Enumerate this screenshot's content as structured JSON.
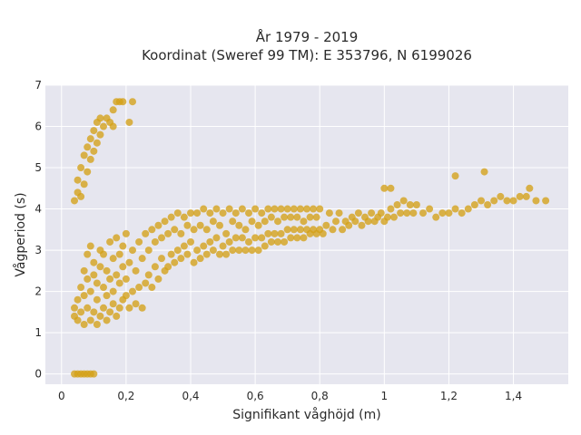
{
  "chart_data": {
    "type": "scatter",
    "title_line1": "År 1979 - 2019",
    "title_line2": "Koordinat (Sweref 99 TM): E 353796, N 6199026",
    "xlabel": "Signifikant våghöjd (m)",
    "ylabel": "Vågperiod (s)",
    "xlim": [
      -0.05,
      1.57
    ],
    "ylim": [
      -0.25,
      7.0
    ],
    "x_ticks": [
      0,
      0.2,
      0.4,
      0.6,
      0.8,
      1.0,
      1.2,
      1.4
    ],
    "x_tick_labels": [
      "0",
      "0,2",
      "0,4",
      "0,6",
      "0,8",
      "1",
      "1,2",
      "1,4"
    ],
    "y_ticks": [
      0,
      1,
      2,
      3,
      4,
      5,
      6,
      7
    ],
    "y_tick_labels": [
      "0",
      "1",
      "2",
      "3",
      "4",
      "5",
      "6",
      "7"
    ],
    "grid": true,
    "plot_background": "#e6e6ef",
    "point_color": "#d4a017",
    "series": [
      {
        "points": [
          [
            0.04,
            0
          ],
          [
            0.05,
            0
          ],
          [
            0.06,
            0
          ],
          [
            0.07,
            0
          ],
          [
            0.08,
            0
          ],
          [
            0.09,
            0
          ],
          [
            0.1,
            0
          ],
          [
            0.04,
            4.2
          ],
          [
            0.05,
            4.4
          ],
          [
            0.05,
            4.7
          ],
          [
            0.06,
            4.3
          ],
          [
            0.06,
            5.0
          ],
          [
            0.07,
            4.6
          ],
          [
            0.07,
            5.3
          ],
          [
            0.08,
            4.9
          ],
          [
            0.08,
            5.5
          ],
          [
            0.09,
            5.2
          ],
          [
            0.09,
            5.7
          ],
          [
            0.1,
            5.4
          ],
          [
            0.1,
            5.9
          ],
          [
            0.11,
            5.6
          ],
          [
            0.11,
            6.1
          ],
          [
            0.12,
            5.8
          ],
          [
            0.12,
            6.2
          ],
          [
            0.13,
            6.0
          ],
          [
            0.14,
            6.2
          ],
          [
            0.15,
            6.1
          ],
          [
            0.16,
            6.4
          ],
          [
            0.17,
            6.6
          ],
          [
            0.18,
            6.6
          ],
          [
            0.19,
            6.6
          ],
          [
            0.22,
            6.6
          ],
          [
            0.21,
            6.1
          ],
          [
            0.16,
            6.0
          ],
          [
            0.04,
            1.4
          ],
          [
            0.04,
            1.6
          ],
          [
            0.05,
            1.3
          ],
          [
            0.05,
            1.8
          ],
          [
            0.06,
            1.5
          ],
          [
            0.06,
            2.1
          ],
          [
            0.07,
            1.2
          ],
          [
            0.07,
            1.9
          ],
          [
            0.07,
            2.5
          ],
          [
            0.08,
            1.6
          ],
          [
            0.08,
            2.3
          ],
          [
            0.08,
            2.9
          ],
          [
            0.09,
            1.3
          ],
          [
            0.09,
            2.0
          ],
          [
            0.09,
            3.1
          ],
          [
            0.1,
            1.5
          ],
          [
            0.1,
            2.4
          ],
          [
            0.1,
            2.7
          ],
          [
            0.11,
            1.2
          ],
          [
            0.11,
            1.8
          ],
          [
            0.11,
            2.2
          ],
          [
            0.12,
            1.4
          ],
          [
            0.12,
            2.6
          ],
          [
            0.12,
            3.0
          ],
          [
            0.13,
            1.6
          ],
          [
            0.13,
            2.1
          ],
          [
            0.13,
            2.9
          ],
          [
            0.14,
            1.3
          ],
          [
            0.14,
            1.9
          ],
          [
            0.14,
            2.5
          ],
          [
            0.15,
            1.5
          ],
          [
            0.15,
            2.3
          ],
          [
            0.15,
            3.2
          ],
          [
            0.16,
            1.7
          ],
          [
            0.16,
            2.0
          ],
          [
            0.16,
            2.8
          ],
          [
            0.17,
            1.4
          ],
          [
            0.17,
            2.4
          ],
          [
            0.17,
            3.3
          ],
          [
            0.18,
            1.6
          ],
          [
            0.18,
            2.2
          ],
          [
            0.18,
            2.9
          ],
          [
            0.19,
            1.8
          ],
          [
            0.19,
            2.6
          ],
          [
            0.19,
            3.1
          ],
          [
            0.2,
            1.9
          ],
          [
            0.2,
            2.3
          ],
          [
            0.2,
            3.4
          ],
          [
            0.21,
            1.6
          ],
          [
            0.21,
            2.7
          ],
          [
            0.22,
            2.0
          ],
          [
            0.22,
            3.0
          ],
          [
            0.23,
            1.7
          ],
          [
            0.23,
            2.5
          ],
          [
            0.24,
            2.1
          ],
          [
            0.24,
            3.2
          ],
          [
            0.25,
            1.6
          ],
          [
            0.25,
            2.8
          ],
          [
            0.26,
            2.2
          ],
          [
            0.26,
            3.4
          ],
          [
            0.27,
            2.4
          ],
          [
            0.27,
            3.0
          ],
          [
            0.28,
            2.1
          ],
          [
            0.28,
            3.5
          ],
          [
            0.29,
            2.6
          ],
          [
            0.29,
            3.2
          ],
          [
            0.3,
            2.3
          ],
          [
            0.3,
            3.6
          ],
          [
            0.31,
            2.8
          ],
          [
            0.31,
            3.3
          ],
          [
            0.32,
            2.5
          ],
          [
            0.32,
            3.7
          ],
          [
            0.33,
            2.6
          ],
          [
            0.33,
            3.4
          ],
          [
            0.34,
            2.9
          ],
          [
            0.34,
            3.8
          ],
          [
            0.35,
            2.7
          ],
          [
            0.35,
            3.5
          ],
          [
            0.36,
            3.0
          ],
          [
            0.36,
            3.9
          ],
          [
            0.37,
            2.8
          ],
          [
            0.37,
            3.4
          ],
          [
            0.38,
            3.1
          ],
          [
            0.38,
            3.8
          ],
          [
            0.39,
            2.9
          ],
          [
            0.39,
            3.6
          ],
          [
            0.4,
            3.2
          ],
          [
            0.4,
            3.9
          ],
          [
            0.41,
            2.7
          ],
          [
            0.41,
            3.5
          ],
          [
            0.42,
            3.0
          ],
          [
            0.42,
            3.9
          ],
          [
            0.43,
            2.8
          ],
          [
            0.43,
            3.6
          ],
          [
            0.44,
            3.1
          ],
          [
            0.44,
            4.0
          ],
          [
            0.45,
            2.9
          ],
          [
            0.45,
            3.5
          ],
          [
            0.46,
            3.2
          ],
          [
            0.46,
            3.9
          ],
          [
            0.47,
            3.0
          ],
          [
            0.47,
            3.7
          ],
          [
            0.48,
            3.3
          ],
          [
            0.48,
            4.0
          ],
          [
            0.49,
            2.9
          ],
          [
            0.49,
            3.6
          ],
          [
            0.5,
            3.1
          ],
          [
            0.5,
            3.9
          ],
          [
            0.51,
            2.9
          ],
          [
            0.51,
            3.4
          ],
          [
            0.52,
            3.2
          ],
          [
            0.52,
            4.0
          ],
          [
            0.53,
            3.0
          ],
          [
            0.53,
            3.7
          ],
          [
            0.54,
            3.3
          ],
          [
            0.54,
            3.9
          ],
          [
            0.55,
            3.0
          ],
          [
            0.55,
            3.6
          ],
          [
            0.56,
            3.3
          ],
          [
            0.56,
            4.0
          ],
          [
            0.57,
            3.0
          ],
          [
            0.57,
            3.5
          ],
          [
            0.58,
            3.2
          ],
          [
            0.58,
            3.9
          ],
          [
            0.59,
            3.0
          ],
          [
            0.59,
            3.7
          ],
          [
            0.6,
            3.3
          ],
          [
            0.6,
            4.0
          ],
          [
            0.61,
            3.0
          ],
          [
            0.61,
            3.6
          ],
          [
            0.62,
            3.3
          ],
          [
            0.62,
            3.9
          ],
          [
            0.63,
            3.1
          ],
          [
            0.63,
            3.7
          ],
          [
            0.64,
            3.4
          ],
          [
            0.64,
            4.0
          ],
          [
            0.65,
            3.2
          ],
          [
            0.65,
            3.8
          ],
          [
            0.66,
            3.4
          ],
          [
            0.66,
            4.0
          ],
          [
            0.67,
            3.2
          ],
          [
            0.67,
            3.7
          ],
          [
            0.68,
            3.4
          ],
          [
            0.68,
            4.0
          ],
          [
            0.69,
            3.2
          ],
          [
            0.69,
            3.8
          ],
          [
            0.7,
            3.5
          ],
          [
            0.7,
            4.0
          ],
          [
            0.71,
            3.3
          ],
          [
            0.71,
            3.8
          ],
          [
            0.72,
            3.5
          ],
          [
            0.72,
            4.0
          ],
          [
            0.73,
            3.3
          ],
          [
            0.73,
            3.8
          ],
          [
            0.74,
            3.5
          ],
          [
            0.74,
            4.0
          ],
          [
            0.75,
            3.3
          ],
          [
            0.75,
            3.7
          ],
          [
            0.76,
            3.5
          ],
          [
            0.76,
            4.0
          ],
          [
            0.77,
            3.4
          ],
          [
            0.77,
            3.8
          ],
          [
            0.78,
            3.5
          ],
          [
            0.78,
            4.0
          ],
          [
            0.79,
            3.4
          ],
          [
            0.79,
            3.8
          ],
          [
            0.8,
            3.5
          ],
          [
            0.8,
            4.0
          ],
          [
            0.81,
            3.4
          ],
          [
            0.82,
            3.6
          ],
          [
            0.83,
            3.9
          ],
          [
            0.84,
            3.5
          ],
          [
            0.85,
            3.7
          ],
          [
            0.86,
            3.9
          ],
          [
            0.87,
            3.5
          ],
          [
            0.88,
            3.7
          ],
          [
            0.89,
            3.6
          ],
          [
            0.9,
            3.8
          ],
          [
            0.91,
            3.7
          ],
          [
            0.92,
            3.9
          ],
          [
            0.93,
            3.6
          ],
          [
            0.94,
            3.8
          ],
          [
            0.95,
            3.7
          ],
          [
            0.96,
            3.9
          ],
          [
            0.97,
            3.7
          ],
          [
            0.98,
            3.8
          ],
          [
            0.99,
            3.9
          ],
          [
            1.0,
            3.7
          ],
          [
            1.01,
            3.8
          ],
          [
            1.02,
            4.0
          ],
          [
            1.03,
            3.8
          ],
          [
            1.04,
            4.1
          ],
          [
            1.05,
            3.9
          ],
          [
            1.06,
            4.2
          ],
          [
            1.07,
            3.9
          ],
          [
            1.08,
            4.1
          ],
          [
            1.09,
            3.9
          ],
          [
            1.1,
            4.1
          ],
          [
            1.12,
            3.9
          ],
          [
            1.14,
            4.0
          ],
          [
            1.16,
            3.8
          ],
          [
            1.18,
            3.9
          ],
          [
            1.2,
            3.9
          ],
          [
            1.22,
            4.0
          ],
          [
            1.24,
            3.9
          ],
          [
            1.26,
            4.0
          ],
          [
            1.28,
            4.1
          ],
          [
            1.3,
            4.2
          ],
          [
            1.31,
            4.9
          ],
          [
            1.32,
            4.1
          ],
          [
            1.34,
            4.2
          ],
          [
            1.36,
            4.3
          ],
          [
            1.38,
            4.2
          ],
          [
            1.4,
            4.2
          ],
          [
            1.42,
            4.3
          ],
          [
            1.44,
            4.3
          ],
          [
            1.45,
            4.5
          ],
          [
            1.47,
            4.2
          ],
          [
            1.5,
            4.2
          ],
          [
            1.22,
            4.8
          ],
          [
            1.0,
            4.5
          ],
          [
            1.02,
            4.5
          ]
        ]
      }
    ]
  }
}
